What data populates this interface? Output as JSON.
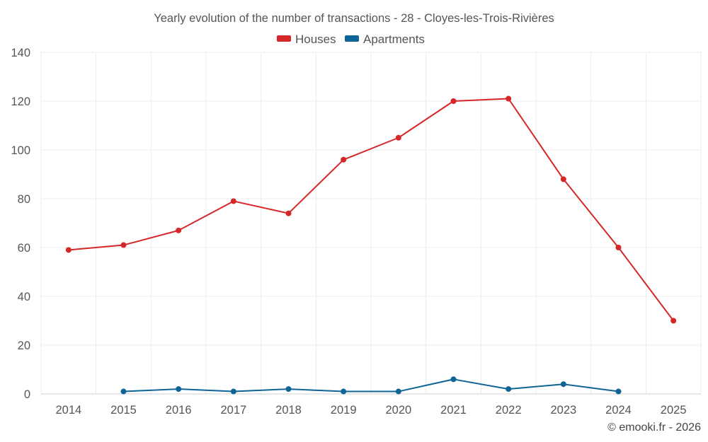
{
  "chart_data": {
    "type": "line",
    "title": "Yearly evolution of the number of transactions - 28 - Cloyes-les-Trois-Rivières",
    "categories": [
      "2014",
      "2015",
      "2016",
      "2017",
      "2018",
      "2019",
      "2020",
      "2021",
      "2022",
      "2023",
      "2024",
      "2025"
    ],
    "series": [
      {
        "name": "Houses",
        "color": "#d62728",
        "values": [
          59,
          61,
          67,
          79,
          74,
          96,
          105,
          120,
          121,
          88,
          60,
          30
        ]
      },
      {
        "name": "Apartments",
        "color": "#0e6497",
        "values": [
          null,
          1,
          2,
          1,
          2,
          1,
          1,
          6,
          2,
          4,
          1,
          null
        ]
      }
    ],
    "y_ticks": [
      "0",
      "20",
      "40",
      "60",
      "80",
      "100",
      "120",
      "140"
    ],
    "ylim": [
      0,
      140
    ],
    "xlabel": "",
    "ylabel": "",
    "grid": true,
    "legend_position": "top-center"
  },
  "credit": "© emooki.fr - 2026"
}
